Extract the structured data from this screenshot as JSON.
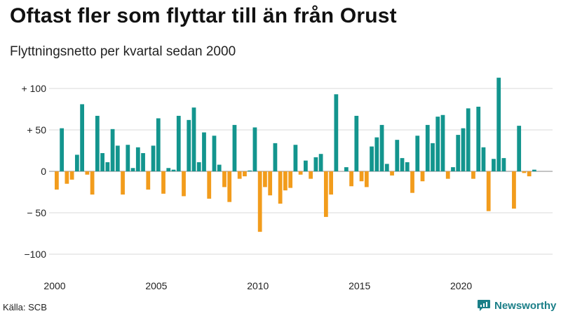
{
  "title": "Oftast fler som flyttar till än från Orust",
  "subtitle": "Flyttningsnetto per kvartal sedan 2000",
  "source": "Källa: SCB",
  "brand": {
    "name": "Newsworthy",
    "logo_icon": "newsworthy-logo-icon"
  },
  "colors": {
    "positive": "#13958e",
    "negative": "#f29c1c",
    "grid": "#d9d9d9",
    "zero": "#888888"
  },
  "chart_data": {
    "type": "bar",
    "ylim": [
      -120,
      120
    ],
    "xlim": [
      2000,
      2024.5
    ],
    "y_ticks": [
      {
        "value": 100,
        "label": "+ 100"
      },
      {
        "value": 50,
        "label": "+  50"
      },
      {
        "value": 0,
        "label": "0"
      },
      {
        "value": -50,
        "label": "− 50"
      },
      {
        "value": -100,
        "label": "−100"
      }
    ],
    "x_ticks": [
      {
        "value": 2000,
        "label": "2000"
      },
      {
        "value": 2005,
        "label": "2005"
      },
      {
        "value": 2010,
        "label": "2010"
      },
      {
        "value": 2015,
        "label": "2015"
      },
      {
        "value": 2020,
        "label": "2020"
      }
    ],
    "grid": true,
    "start_year": 2000,
    "values": [
      -22,
      52,
      -15,
      -10,
      20,
      81,
      -4,
      -28,
      67,
      22,
      11,
      51,
      31,
      -28,
      32,
      4,
      29,
      22,
      -22,
      31,
      64,
      -27,
      4,
      2,
      67,
      -30,
      62,
      77,
      11,
      47,
      -33,
      43,
      8,
      -19,
      -37,
      56,
      -9,
      -6,
      1,
      53,
      -73,
      -19,
      -29,
      34,
      -39,
      -23,
      -20,
      32,
      -4,
      13,
      -9,
      17,
      21,
      -55,
      -28,
      93,
      0,
      5,
      -18,
      67,
      -12,
      -19,
      30,
      41,
      56,
      9,
      -5,
      38,
      16,
      11,
      -26,
      43,
      -12,
      56,
      34,
      66,
      68,
      -9,
      5,
      44,
      52,
      76,
      -9,
      78,
      29,
      -48,
      15,
      113,
      16,
      0,
      -45,
      55,
      -2,
      -6,
      2
    ]
  }
}
